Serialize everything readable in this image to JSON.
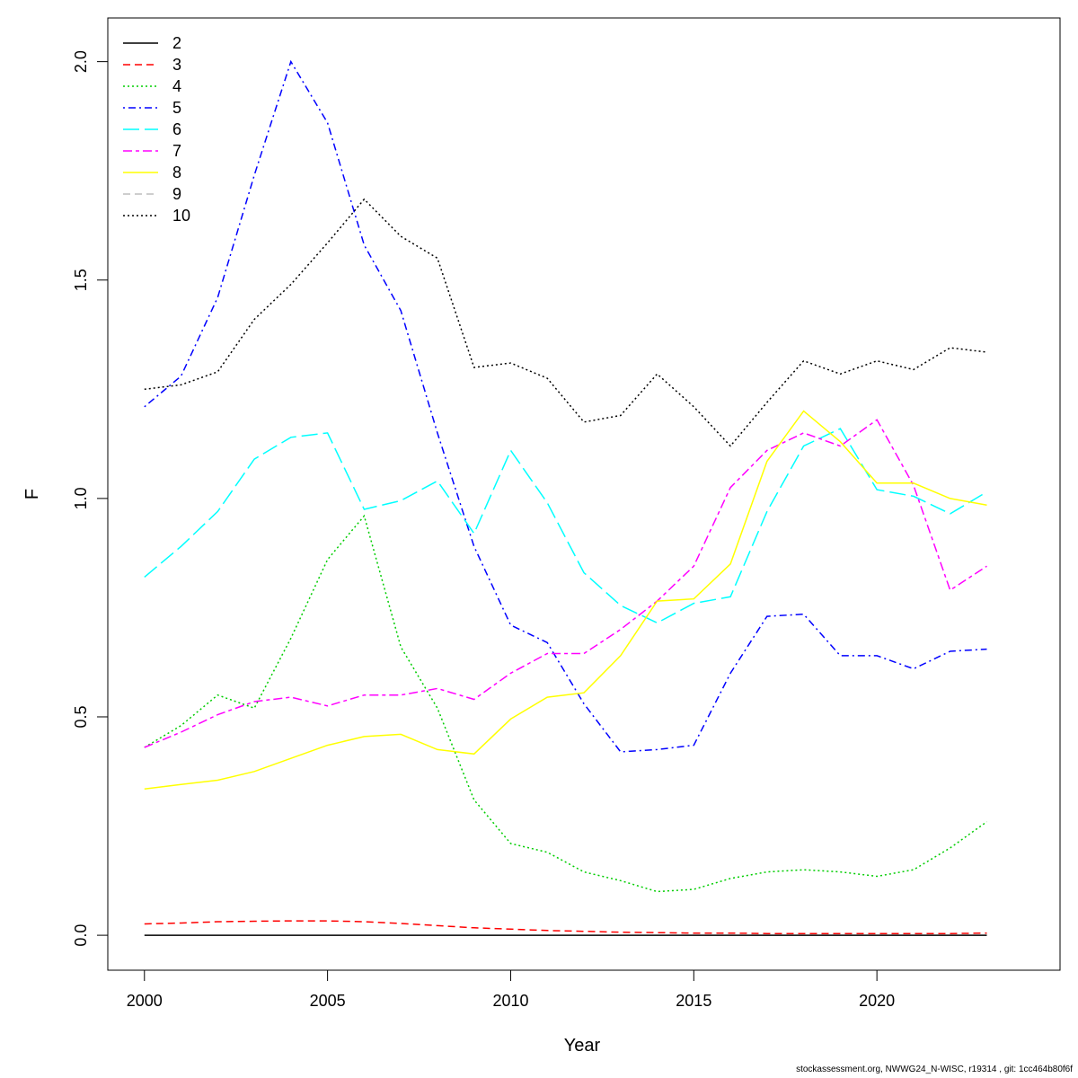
{
  "chart_data": {
    "type": "line",
    "title": "",
    "xlabel": "Year",
    "ylabel": "F",
    "xlim": [
      1999,
      2025
    ],
    "ylim": [
      -0.08,
      2.1
    ],
    "x_ticks": [
      2000,
      2005,
      2010,
      2015,
      2020
    ],
    "y_ticks": [
      0.0,
      0.5,
      1.0,
      1.5,
      2.0
    ],
    "y_tick_labels": [
      "0.0",
      "0.5",
      "1.0",
      "1.5",
      "2.0"
    ],
    "grid": false,
    "legend_position": "top-left",
    "x": [
      2000,
      2001,
      2002,
      2003,
      2004,
      2005,
      2006,
      2007,
      2008,
      2009,
      2010,
      2011,
      2012,
      2013,
      2014,
      2015,
      2016,
      2017,
      2018,
      2019,
      2020,
      2021,
      2022,
      2023
    ],
    "series": [
      {
        "name": "2",
        "color": "#000000",
        "dash": "solid",
        "values": [
          0,
          0,
          0,
          0,
          0,
          0,
          0,
          0,
          0,
          0,
          0,
          0,
          0,
          0,
          0,
          0,
          0,
          0,
          0,
          0,
          0,
          0,
          0,
          0
        ]
      },
      {
        "name": "3",
        "color": "#ff0000",
        "dash": "dashed",
        "values": [
          0.026,
          0.028,
          0.031,
          0.032,
          0.033,
          0.033,
          0.031,
          0.027,
          0.022,
          0.017,
          0.014,
          0.011,
          0.009,
          0.007,
          0.006,
          0.005,
          0.005,
          0.004,
          0.004,
          0.004,
          0.004,
          0.004,
          0.004,
          0.005
        ]
      },
      {
        "name": "4",
        "color": "#00cd00",
        "dash": "dotted",
        "values": [
          0.43,
          0.48,
          0.55,
          0.52,
          0.68,
          0.86,
          0.96,
          0.66,
          0.52,
          0.31,
          0.21,
          0.19,
          0.145,
          0.125,
          0.1,
          0.105,
          0.13,
          0.145,
          0.15,
          0.145,
          0.135,
          0.15,
          0.2,
          0.26
        ]
      },
      {
        "name": "5",
        "color": "#0000ff",
        "dash": "dotdash",
        "values": [
          1.21,
          1.28,
          1.46,
          1.74,
          2.0,
          1.86,
          1.58,
          1.43,
          1.15,
          0.89,
          0.71,
          0.67,
          0.53,
          0.42,
          0.425,
          0.435,
          0.6,
          0.73,
          0.735,
          0.64,
          0.64,
          0.61,
          0.65,
          0.655
        ]
      },
      {
        "name": "6",
        "color": "#00ffff",
        "dash": "longdash",
        "values": [
          0.82,
          0.89,
          0.97,
          1.09,
          1.14,
          1.15,
          0.975,
          0.995,
          1.04,
          0.92,
          1.11,
          0.99,
          0.83,
          0.755,
          0.715,
          0.76,
          0.775,
          0.97,
          1.12,
          1.16,
          1.02,
          1.005,
          0.965,
          1.015
        ]
      },
      {
        "name": "7",
        "color": "#ff00ff",
        "dash": "twodash",
        "values": [
          0.43,
          0.465,
          0.505,
          0.535,
          0.545,
          0.525,
          0.55,
          0.55,
          0.565,
          0.54,
          0.6,
          0.645,
          0.645,
          0.7,
          0.765,
          0.845,
          1.025,
          1.11,
          1.15,
          1.12,
          1.18,
          1.03,
          0.79,
          0.845
        ]
      },
      {
        "name": "8",
        "color": "#ffff00",
        "dash": "solid",
        "values": [
          0.335,
          0.345,
          0.355,
          0.375,
          0.405,
          0.435,
          0.455,
          0.46,
          0.425,
          0.415,
          0.495,
          0.545,
          0.555,
          0.64,
          0.765,
          0.77,
          0.85,
          1.085,
          1.2,
          1.13,
          1.035,
          1.035,
          1.0,
          0.985
        ]
      },
      {
        "name": "9",
        "color": "#bebebe",
        "dash": "dashed",
        "values": [
          null,
          null,
          null,
          null,
          null,
          null,
          null,
          null,
          null,
          null,
          null,
          null,
          null,
          null,
          null,
          null,
          null,
          null,
          null,
          null,
          null,
          null,
          null,
          null
        ]
      },
      {
        "name": "10",
        "color": "#000000",
        "dash": "dotted",
        "values": [
          1.25,
          1.26,
          1.29,
          1.41,
          1.49,
          1.585,
          1.685,
          1.6,
          1.55,
          1.3,
          1.31,
          1.275,
          1.175,
          1.19,
          1.285,
          1.21,
          1.12,
          1.22,
          1.315,
          1.285,
          1.315,
          1.295,
          1.345,
          1.335
        ]
      }
    ]
  },
  "footer": {
    "text": "stockassessment.org, NWWG24_N-WISC, r19314 , git: 1cc464b80f6f"
  }
}
